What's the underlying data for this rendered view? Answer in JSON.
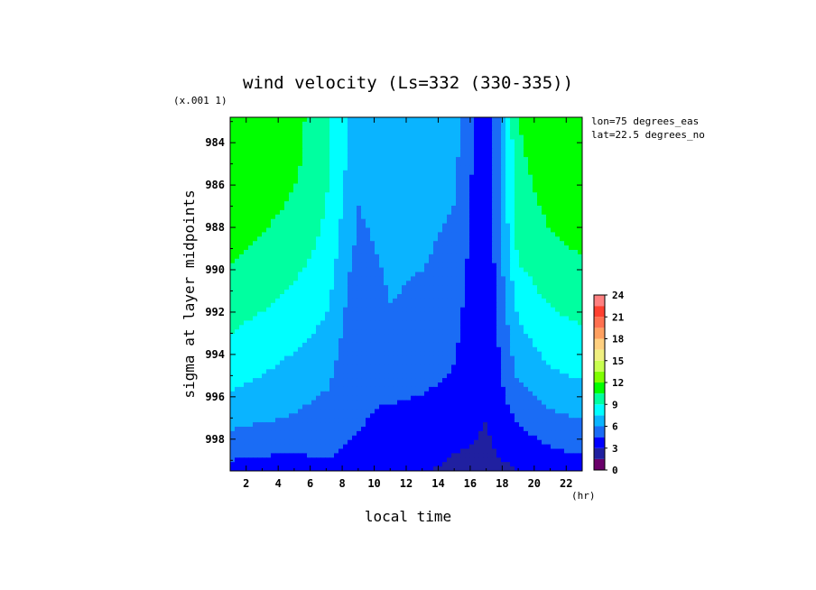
{
  "chart_data": {
    "type": "heatmap",
    "title": "wind velocity (Ls=332 (330-335))",
    "xlabel": "local time",
    "x_unit": "(hr)",
    "ylabel": "sigma at layer midpoints",
    "y_scale_note": "(x.001 1)",
    "annotations": [
      "lon=75 degrees_eas",
      "lat=22.5 degrees_no"
    ],
    "xlim": [
      1,
      23
    ],
    "ylim": [
      999.5,
      982.8
    ],
    "x_ticks": [
      2,
      4,
      6,
      8,
      10,
      12,
      14,
      16,
      18,
      20,
      22
    ],
    "y_ticks": [
      984,
      986,
      988,
      990,
      992,
      994,
      996,
      998
    ],
    "colorbar": {
      "levels": [
        0,
        1.5,
        3,
        4.5,
        6,
        7.5,
        9,
        10.5,
        12,
        13.5,
        15,
        16.5,
        18,
        19.5,
        21,
        22.5,
        24
      ],
      "tick_labels": [
        "0",
        "3",
        "6",
        "9",
        "12",
        "15",
        "18",
        "21",
        "24"
      ],
      "colors": [
        "#6a006a",
        "#2020a0",
        "#0000ff",
        "#1a6cf5",
        "#0ab4ff",
        "#00ffff",
        "#00ffa0",
        "#00ff00",
        "#7fff00",
        "#c8ff50",
        "#f0f080",
        "#ffd080",
        "#ffa060",
        "#ff7050",
        "#ff4030",
        "#ff8080"
      ]
    },
    "x": [
      1,
      3,
      5,
      7,
      9,
      11,
      13,
      15,
      17,
      19,
      21,
      23
    ],
    "y": [
      983,
      985,
      987,
      989,
      991,
      993,
      995,
      997,
      998.5,
      999.5
    ],
    "z": [
      [
        12.0,
        11.5,
        11.0,
        9.5,
        6.5,
        6.8,
        6.8,
        6.5,
        3.0,
        10.5,
        11.5,
        11.8
      ],
      [
        11.8,
        11.3,
        10.8,
        9.3,
        6.4,
        6.8,
        6.7,
        6.4,
        3.0,
        10.2,
        11.2,
        11.6
      ],
      [
        11.4,
        10.9,
        10.3,
        9.0,
        6.0,
        6.6,
        6.5,
        6.0,
        3.0,
        9.9,
        10.8,
        11.2
      ],
      [
        10.8,
        10.3,
        9.7,
        8.6,
        5.6,
        6.4,
        6.2,
        5.6,
        3.0,
        9.3,
        10.3,
        10.6
      ],
      [
        10.0,
        9.5,
        8.8,
        8.0,
        4.9,
        6.1,
        5.8,
        5.2,
        3.0,
        8.3,
        9.4,
        9.8
      ],
      [
        9.0,
        8.5,
        7.9,
        7.2,
        4.7,
        5.7,
        5.3,
        4.8,
        3.0,
        7.2,
        8.4,
        8.8
      ],
      [
        8.0,
        7.5,
        7.0,
        6.4,
        4.5,
        5.3,
        4.9,
        4.4,
        3.0,
        6.2,
        7.3,
        7.7
      ],
      [
        6.6,
        6.2,
        5.9,
        5.3,
        4.7,
        4.1,
        4.0,
        3.7,
        3.0,
        4.7,
        5.7,
        6.1
      ],
      [
        5.0,
        4.8,
        4.6,
        4.8,
        4.2,
        3.6,
        3.6,
        3.1,
        2.8,
        3.6,
        4.4,
        4.7
      ],
      [
        4.0,
        3.8,
        3.8,
        4.2,
        3.8,
        3.2,
        3.2,
        2.6,
        2.5,
        3.0,
        3.6,
        3.8
      ]
    ]
  }
}
